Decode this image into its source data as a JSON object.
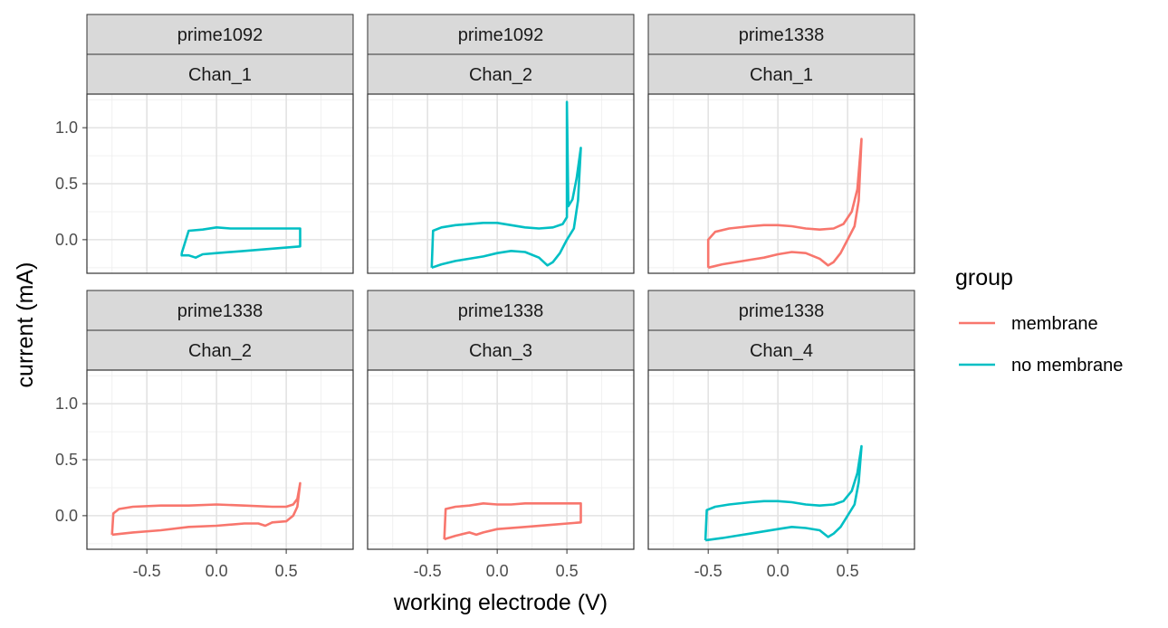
{
  "chart_data": {
    "type": "line",
    "xlabel": "working electrode (V)",
    "ylabel": "current (mA)",
    "xlim": [
      -0.93,
      0.98
    ],
    "ylim": [
      -0.3,
      1.3
    ],
    "x_ticks": [
      -0.5,
      0.0,
      0.5
    ],
    "x_tick_labels": [
      "-0.5",
      "0.0",
      "0.5"
    ],
    "y_ticks": [
      0.0,
      0.5,
      1.0
    ],
    "y_tick_labels": [
      "0.0",
      "0.5",
      "1.0"
    ],
    "grid": true,
    "legend": {
      "title": "group",
      "position": "right",
      "entries": [
        {
          "label": "membrane",
          "color": "#F8766D"
        },
        {
          "label": "no membrane",
          "color": "#00BFC4"
        }
      ]
    },
    "panels": [
      {
        "strip_top": "prime1092",
        "strip_bottom": "Chan_1",
        "group": "no membrane",
        "curve": {
          "anodic": [
            [
              -0.25,
              -0.12
            ],
            [
              -0.2,
              0.08
            ],
            [
              -0.1,
              0.09
            ],
            [
              0.0,
              0.11
            ],
            [
              0.1,
              0.1
            ],
            [
              0.2,
              0.1
            ],
            [
              0.3,
              0.1
            ],
            [
              0.4,
              0.1
            ],
            [
              0.5,
              0.1
            ],
            [
              0.6,
              0.1
            ]
          ],
          "cathodic": [
            [
              0.6,
              0.1
            ],
            [
              0.6,
              -0.06
            ],
            [
              0.4,
              -0.08
            ],
            [
              0.2,
              -0.1
            ],
            [
              0.0,
              -0.12
            ],
            [
              -0.1,
              -0.13
            ],
            [
              -0.15,
              -0.16
            ],
            [
              -0.2,
              -0.14
            ],
            [
              -0.25,
              -0.14
            ],
            [
              -0.25,
              -0.12
            ]
          ]
        }
      },
      {
        "strip_top": "prime1092",
        "strip_bottom": "Chan_2",
        "group": "no membrane",
        "curve": {
          "anodic": [
            [
              -0.47,
              -0.25
            ],
            [
              -0.46,
              0.08
            ],
            [
              -0.4,
              0.11
            ],
            [
              -0.3,
              0.13
            ],
            [
              -0.2,
              0.14
            ],
            [
              -0.1,
              0.15
            ],
            [
              0.0,
              0.15
            ],
            [
              0.1,
              0.13
            ],
            [
              0.2,
              0.11
            ],
            [
              0.3,
              0.1
            ],
            [
              0.4,
              0.11
            ],
            [
              0.47,
              0.14
            ],
            [
              0.5,
              0.2
            ],
            [
              0.5,
              1.23
            ],
            [
              0.51,
              0.3
            ],
            [
              0.54,
              0.36
            ],
            [
              0.57,
              0.55
            ],
            [
              0.6,
              0.82
            ]
          ],
          "cathodic": [
            [
              0.6,
              0.82
            ],
            [
              0.58,
              0.35
            ],
            [
              0.55,
              0.1
            ],
            [
              0.5,
              0.0
            ],
            [
              0.45,
              -0.12
            ],
            [
              0.4,
              -0.2
            ],
            [
              0.36,
              -0.23
            ],
            [
              0.3,
              -0.16
            ],
            [
              0.2,
              -0.11
            ],
            [
              0.1,
              -0.1
            ],
            [
              0.0,
              -0.12
            ],
            [
              -0.1,
              -0.15
            ],
            [
              -0.2,
              -0.17
            ],
            [
              -0.3,
              -0.19
            ],
            [
              -0.4,
              -0.22
            ],
            [
              -0.47,
              -0.25
            ]
          ]
        }
      },
      {
        "strip_top": "prime1338",
        "strip_bottom": "Chan_1",
        "group": "membrane",
        "curve": {
          "anodic": [
            [
              -0.5,
              -0.25
            ],
            [
              -0.5,
              0.0
            ],
            [
              -0.45,
              0.07
            ],
            [
              -0.35,
              0.1
            ],
            [
              -0.2,
              0.12
            ],
            [
              -0.1,
              0.13
            ],
            [
              0.0,
              0.13
            ],
            [
              0.1,
              0.12
            ],
            [
              0.2,
              0.1
            ],
            [
              0.3,
              0.09
            ],
            [
              0.4,
              0.1
            ],
            [
              0.47,
              0.14
            ],
            [
              0.53,
              0.25
            ],
            [
              0.57,
              0.45
            ],
            [
              0.6,
              0.9
            ]
          ],
          "cathodic": [
            [
              0.6,
              0.9
            ],
            [
              0.58,
              0.35
            ],
            [
              0.55,
              0.12
            ],
            [
              0.5,
              0.0
            ],
            [
              0.45,
              -0.12
            ],
            [
              0.4,
              -0.2
            ],
            [
              0.36,
              -0.23
            ],
            [
              0.3,
              -0.17
            ],
            [
              0.2,
              -0.12
            ],
            [
              0.1,
              -0.11
            ],
            [
              0.0,
              -0.13
            ],
            [
              -0.1,
              -0.16
            ],
            [
              -0.2,
              -0.18
            ],
            [
              -0.3,
              -0.2
            ],
            [
              -0.4,
              -0.22
            ],
            [
              -0.5,
              -0.25
            ]
          ]
        }
      },
      {
        "strip_top": "prime1338",
        "strip_bottom": "Chan_2",
        "group": "membrane",
        "curve": {
          "anodic": [
            [
              -0.75,
              -0.17
            ],
            [
              -0.74,
              0.02
            ],
            [
              -0.7,
              0.06
            ],
            [
              -0.6,
              0.08
            ],
            [
              -0.4,
              0.09
            ],
            [
              -0.2,
              0.09
            ],
            [
              0.0,
              0.1
            ],
            [
              0.2,
              0.09
            ],
            [
              0.4,
              0.08
            ],
            [
              0.5,
              0.08
            ],
            [
              0.55,
              0.1
            ],
            [
              0.58,
              0.15
            ],
            [
              0.6,
              0.29
            ]
          ],
          "cathodic": [
            [
              0.6,
              0.29
            ],
            [
              0.58,
              0.08
            ],
            [
              0.55,
              0.0
            ],
            [
              0.5,
              -0.05
            ],
            [
              0.4,
              -0.06
            ],
            [
              0.35,
              -0.09
            ],
            [
              0.3,
              -0.07
            ],
            [
              0.2,
              -0.07
            ],
            [
              0.0,
              -0.09
            ],
            [
              -0.2,
              -0.1
            ],
            [
              -0.4,
              -0.13
            ],
            [
              -0.6,
              -0.15
            ],
            [
              -0.75,
              -0.17
            ]
          ]
        }
      },
      {
        "strip_top": "prime1338",
        "strip_bottom": "Chan_3",
        "group": "membrane",
        "curve": {
          "anodic": [
            [
              -0.38,
              -0.21
            ],
            [
              -0.37,
              0.06
            ],
            [
              -0.3,
              0.08
            ],
            [
              -0.2,
              0.09
            ],
            [
              -0.1,
              0.11
            ],
            [
              0.0,
              0.1
            ],
            [
              0.1,
              0.1
            ],
            [
              0.2,
              0.11
            ],
            [
              0.3,
              0.11
            ],
            [
              0.4,
              0.11
            ],
            [
              0.5,
              0.11
            ],
            [
              0.6,
              0.11
            ]
          ],
          "cathodic": [
            [
              0.6,
              0.11
            ],
            [
              0.6,
              -0.06
            ],
            [
              0.4,
              -0.08
            ],
            [
              0.2,
              -0.1
            ],
            [
              0.0,
              -0.12
            ],
            [
              -0.1,
              -0.15
            ],
            [
              -0.15,
              -0.17
            ],
            [
              -0.2,
              -0.15
            ],
            [
              -0.3,
              -0.18
            ],
            [
              -0.38,
              -0.21
            ]
          ]
        }
      },
      {
        "strip_top": "prime1338",
        "strip_bottom": "Chan_4",
        "group": "no membrane",
        "curve": {
          "anodic": [
            [
              -0.52,
              -0.22
            ],
            [
              -0.51,
              0.05
            ],
            [
              -0.45,
              0.08
            ],
            [
              -0.35,
              0.1
            ],
            [
              -0.2,
              0.12
            ],
            [
              -0.1,
              0.13
            ],
            [
              0.0,
              0.13
            ],
            [
              0.1,
              0.12
            ],
            [
              0.2,
              0.1
            ],
            [
              0.3,
              0.09
            ],
            [
              0.4,
              0.1
            ],
            [
              0.47,
              0.13
            ],
            [
              0.53,
              0.22
            ],
            [
              0.57,
              0.38
            ],
            [
              0.6,
              0.62
            ]
          ],
          "cathodic": [
            [
              0.6,
              0.62
            ],
            [
              0.58,
              0.3
            ],
            [
              0.55,
              0.1
            ],
            [
              0.5,
              0.0
            ],
            [
              0.45,
              -0.1
            ],
            [
              0.4,
              -0.16
            ],
            [
              0.36,
              -0.19
            ],
            [
              0.3,
              -0.13
            ],
            [
              0.2,
              -0.11
            ],
            [
              0.1,
              -0.1
            ],
            [
              0.0,
              -0.12
            ],
            [
              -0.1,
              -0.14
            ],
            [
              -0.2,
              -0.16
            ],
            [
              -0.3,
              -0.18
            ],
            [
              -0.4,
              -0.2
            ],
            [
              -0.52,
              -0.22
            ]
          ]
        }
      }
    ]
  }
}
